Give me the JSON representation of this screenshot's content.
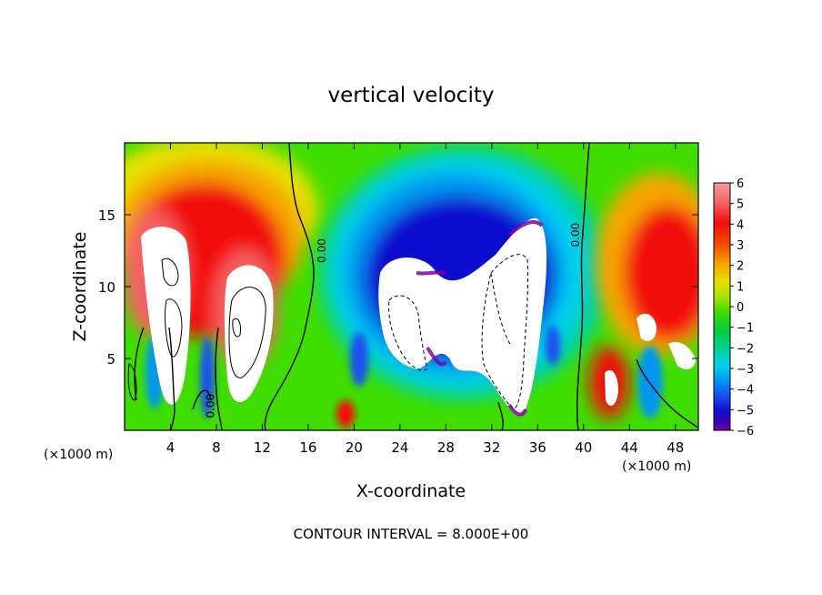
{
  "chart_data": {
    "type": "heatmap",
    "title": "vertical velocity",
    "xlabel": "X-coordinate",
    "ylabel": "Z-coordinate",
    "x_unit_left": "(×1000 m)",
    "x_unit_right": "(×1000 m)",
    "footer": "CONTOUR INTERVAL = 8.000E+00",
    "xlim": [
      0,
      50
    ],
    "ylim": [
      0,
      20
    ],
    "x_ticks": [
      4,
      8,
      12,
      16,
      20,
      24,
      28,
      32,
      36,
      40,
      44,
      48
    ],
    "x_tick_labels": [
      "4",
      "8",
      "12",
      "16",
      "20",
      "24",
      "28",
      "32",
      "36",
      "40",
      "44",
      "48"
    ],
    "y_ticks": [
      5,
      10,
      15
    ],
    "y_tick_labels": [
      "5",
      "10",
      "15"
    ],
    "colorbar": {
      "min": -6,
      "max": 6,
      "tick_values": [
        6,
        5,
        4,
        3,
        2,
        1,
        0,
        -1,
        -2,
        -3,
        -4,
        -5,
        -6
      ],
      "tick_labels": [
        "6",
        "5",
        "4",
        "3",
        "2",
        "1",
        "0",
        "−1",
        "−2",
        "−3",
        "−4",
        "−5",
        "−6"
      ],
      "colors": [
        "#f49a9a",
        "#f46262",
        "#f20e0e",
        "#f44c00",
        "#f5a600",
        "#e8e000",
        "#a8e400",
        "#3fde00",
        "#00cc44",
        "#00d2a0",
        "#00d0f0",
        "#0096f0",
        "#1a50f0",
        "#1010d0",
        "#3a00b0",
        "#8000a8"
      ]
    },
    "contour_labels": [
      {
        "text": "0.00",
        "x": 7.8,
        "y": 1.7
      },
      {
        "text": "0.00",
        "x": 17.5,
        "y": 12.5
      },
      {
        "text": "0.00",
        "x": 39.6,
        "y": 13.6
      }
    ],
    "features": [
      {
        "type": "updraft",
        "x": 2.2,
        "z": 12.0,
        "w": 6.0
      },
      {
        "type": "updraft",
        "x": 9.5,
        "z": 8.0,
        "w": 6.0
      },
      {
        "type": "downdraft",
        "x": 29.0,
        "z": 8.5,
        "w": -6.0
      },
      {
        "type": "updraft",
        "x": 47.0,
        "z": 9.0,
        "w": 4.5
      }
    ]
  }
}
